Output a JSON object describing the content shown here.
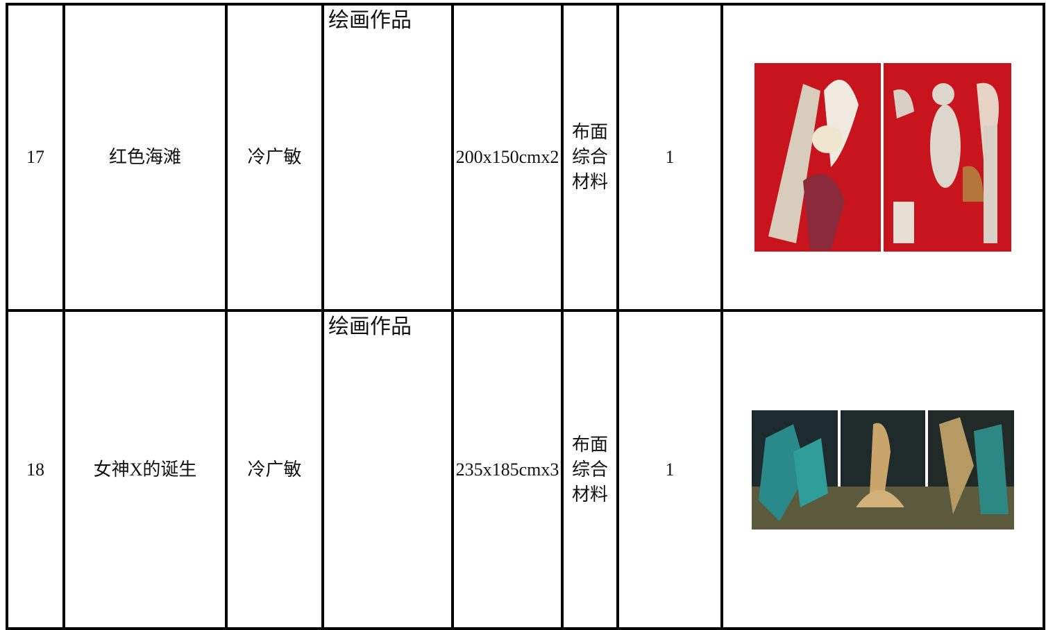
{
  "table": {
    "rows": [
      [
        "17",
        "红色海滩",
        "冷广敏",
        "绘画作品",
        "200x150cmx2",
        "布面综合材料",
        "1"
      ],
      [
        "18",
        "女神X的诞生",
        "冷广敏",
        "绘画作品",
        "235x185cmx3",
        "布面综合材料",
        "1"
      ]
    ]
  }
}
